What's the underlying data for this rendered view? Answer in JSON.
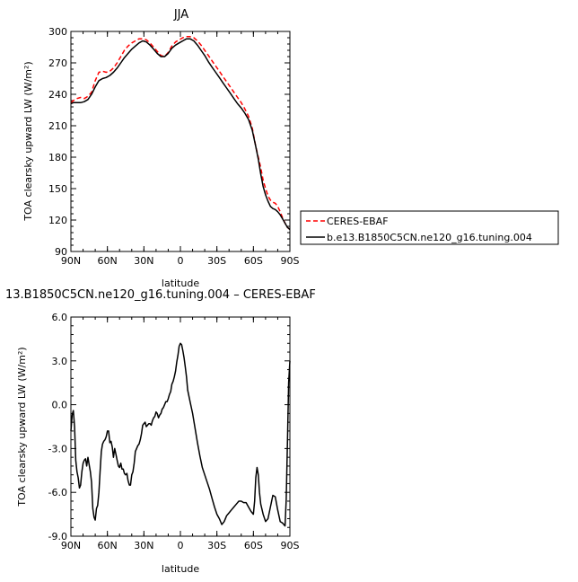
{
  "chart_data": [
    {
      "type": "line",
      "title": "JJA",
      "xlabel": "latitude",
      "ylabel": "TOA clearsky upward LW (W/m²)",
      "xlim": [
        90,
        -90
      ],
      "ylim": [
        90,
        300
      ],
      "x_ticks": [
        {
          "value": 90,
          "label": "90N"
        },
        {
          "value": 60,
          "label": "60N"
        },
        {
          "value": 30,
          "label": "30N"
        },
        {
          "value": 0,
          "label": "0"
        },
        {
          "value": -30,
          "label": "30S"
        },
        {
          "value": -60,
          "label": "60S"
        },
        {
          "value": -90,
          "label": "90S"
        }
      ],
      "y_ticks": [
        {
          "value": 90,
          "label": "90"
        },
        {
          "value": 120,
          "label": "120"
        },
        {
          "value": 150,
          "label": "150"
        },
        {
          "value": 180,
          "label": "180"
        },
        {
          "value": 210,
          "label": "210"
        },
        {
          "value": 240,
          "label": "240"
        },
        {
          "value": 270,
          "label": "270"
        },
        {
          "value": 300,
          "label": "300"
        }
      ],
      "legend_position": "right",
      "series": [
        {
          "name": "CERES-EBAF",
          "color": "#ff0000",
          "dash": "dashed",
          "x": [
            90,
            88,
            85,
            82,
            79,
            76,
            73,
            70,
            67,
            64,
            61,
            58,
            55,
            52,
            49,
            46,
            43,
            40,
            37,
            34,
            31,
            28,
            25,
            22,
            19,
            16,
            13,
            10,
            7,
            4,
            1,
            -2,
            -5,
            -8,
            -11,
            -14,
            -17,
            -20,
            -23,
            -26,
            -29,
            -32,
            -35,
            -38,
            -41,
            -44,
            -47,
            -50,
            -53,
            -56,
            -59,
            -62,
            -64,
            -66,
            -68,
            -70,
            -72,
            -74,
            -76,
            -78,
            -80,
            -82,
            -84,
            -86,
            -88,
            -90
          ],
          "y": [
            232,
            234,
            236,
            237,
            236,
            238,
            242,
            253,
            261,
            262,
            261,
            262,
            265,
            270,
            276,
            282,
            286,
            289,
            291,
            293,
            293,
            292,
            289,
            285,
            281,
            277,
            276,
            280,
            286,
            290,
            292,
            294,
            295,
            295,
            294,
            291,
            287,
            282,
            277,
            272,
            267,
            262,
            257,
            252,
            247,
            242,
            237,
            232,
            226,
            219,
            208,
            190,
            180,
            170,
            158,
            150,
            143,
            139,
            137,
            136,
            133,
            128,
            122,
            117,
            113,
            111
          ]
        },
        {
          "name": "b.e13.B1850C5CN.ne120_g16.tuning.004",
          "color": "#000000",
          "dash": "solid",
          "x": [
            90,
            88,
            85,
            82,
            79,
            76,
            73,
            70,
            67,
            64,
            61,
            58,
            55,
            52,
            49,
            46,
            43,
            40,
            37,
            34,
            31,
            28,
            25,
            22,
            19,
            16,
            13,
            10,
            7,
            4,
            1,
            -2,
            -5,
            -8,
            -11,
            -14,
            -17,
            -20,
            -23,
            -26,
            -29,
            -32,
            -35,
            -38,
            -41,
            -44,
            -47,
            -50,
            -53,
            -56,
            -59,
            -62,
            -64,
            -66,
            -68,
            -70,
            -72,
            -74,
            -76,
            -78,
            -80,
            -82,
            -84,
            -86,
            -88,
            -90
          ],
          "y": [
            231,
            232,
            232,
            232,
            233,
            235,
            240,
            247,
            253,
            255,
            256,
            258,
            261,
            265,
            270,
            275,
            279,
            283,
            286,
            289,
            291,
            290,
            287,
            283,
            279,
            276,
            276,
            279,
            284,
            287,
            289,
            291,
            293,
            293,
            291,
            287,
            282,
            277,
            271,
            266,
            261,
            256,
            251,
            246,
            241,
            236,
            231,
            227,
            222,
            216,
            206,
            190,
            178,
            164,
            152,
            144,
            138,
            133,
            131,
            130,
            128,
            125,
            121,
            117,
            113,
            111
          ]
        }
      ]
    },
    {
      "type": "line",
      "title": "13.B1850C5CN.ne120_g16.tuning.004 – CERES-EBAF",
      "xlabel": "latitude",
      "ylabel": "TOA clearsky upward LW (W/m²)",
      "xlim": [
        90,
        -90
      ],
      "ylim": [
        -9,
        6
      ],
      "x_ticks": [
        {
          "value": 90,
          "label": "90N"
        },
        {
          "value": 60,
          "label": "60N"
        },
        {
          "value": 30,
          "label": "30N"
        },
        {
          "value": 0,
          "label": "0"
        },
        {
          "value": -30,
          "label": "30S"
        },
        {
          "value": -60,
          "label": "60S"
        },
        {
          "value": -90,
          "label": "90S"
        }
      ],
      "y_ticks": [
        {
          "value": -9,
          "label": "-9.0"
        },
        {
          "value": -6,
          "label": "-6.0"
        },
        {
          "value": -3,
          "label": "-3.0"
        },
        {
          "value": 0,
          "label": "0.0"
        },
        {
          "value": 3,
          "label": "3.0"
        },
        {
          "value": 6,
          "label": "6.0"
        }
      ],
      "series": [
        {
          "color": "#000000",
          "dash": "solid",
          "x": [
            90,
            89,
            88,
            87,
            86,
            85,
            84,
            83,
            82,
            81,
            80,
            79,
            78,
            77,
            76,
            75,
            74,
            73,
            72,
            71,
            70,
            69,
            68,
            67,
            66,
            65,
            64,
            63,
            62,
            61,
            60,
            59,
            58,
            57,
            56,
            55,
            54,
            53,
            52,
            51,
            50,
            49,
            48,
            47,
            46,
            45,
            44,
            43,
            42,
            41,
            40,
            39,
            38,
            37,
            36,
            35,
            34,
            33,
            32,
            31,
            30,
            29,
            28,
            27,
            26,
            25,
            24,
            23,
            22,
            21,
            20,
            19,
            18,
            17,
            16,
            15,
            14,
            13,
            12,
            11,
            10,
            9,
            8,
            7,
            6,
            5,
            4,
            3,
            2,
            1,
            0,
            -1,
            -2,
            -3,
            -4,
            -5,
            -6,
            -8,
            -10,
            -12,
            -14,
            -16,
            -18,
            -20,
            -22,
            -24,
            -26,
            -28,
            -30,
            -32,
            -34,
            -36,
            -38,
            -40,
            -42,
            -44,
            -46,
            -48,
            -50,
            -52,
            -54,
            -56,
            -58,
            -60,
            -61,
            -62,
            -63,
            -64,
            -65,
            -66,
            -68,
            -70,
            -72,
            -74,
            -76,
            -78,
            -80,
            -82,
            -84,
            -85,
            -86,
            -87,
            -88,
            -89,
            -90
          ],
          "y": [
            -1.8,
            -0.7,
            -0.4,
            -1.5,
            -3.8,
            -4.6,
            -5.0,
            -5.7,
            -5.5,
            -4.6,
            -4.0,
            -3.8,
            -3.7,
            -4.2,
            -3.6,
            -4.1,
            -4.6,
            -5.3,
            -7.1,
            -7.7,
            -7.9,
            -7.1,
            -6.9,
            -6.0,
            -4.6,
            -3.2,
            -2.7,
            -2.5,
            -2.4,
            -2.2,
            -1.8,
            -1.8,
            -2.6,
            -2.5,
            -2.9,
            -3.6,
            -3.0,
            -3.4,
            -3.8,
            -4.2,
            -4.3,
            -4.0,
            -4.4,
            -4.4,
            -4.7,
            -4.8,
            -4.7,
            -5.2,
            -5.5,
            -5.5,
            -4.8,
            -4.6,
            -4.0,
            -3.2,
            -3.0,
            -2.8,
            -2.7,
            -2.4,
            -2.0,
            -1.4,
            -1.3,
            -1.2,
            -1.5,
            -1.4,
            -1.3,
            -1.3,
            -1.4,
            -1.1,
            -0.9,
            -0.8,
            -0.5,
            -0.6,
            -0.9,
            -0.7,
            -0.6,
            -0.3,
            -0.2,
            0.0,
            0.2,
            0.2,
            0.4,
            0.7,
            0.9,
            1.4,
            1.6,
            1.9,
            2.3,
            2.9,
            3.4,
            4.0,
            4.2,
            4.1,
            3.7,
            3.2,
            2.6,
            1.9,
            1.0,
            0.2,
            -0.6,
            -1.6,
            -2.6,
            -3.5,
            -4.3,
            -4.8,
            -5.3,
            -5.8,
            -6.4,
            -7.0,
            -7.5,
            -7.8,
            -8.2,
            -8.0,
            -7.6,
            -7.4,
            -7.2,
            -7.0,
            -6.8,
            -6.6,
            -6.6,
            -6.7,
            -6.7,
            -7.0,
            -7.3,
            -7.5,
            -6.6,
            -5.0,
            -4.3,
            -4.8,
            -6.0,
            -6.8,
            -7.5,
            -8.0,
            -7.8,
            -7.0,
            -6.2,
            -6.3,
            -7.2,
            -8.0,
            -8.1,
            -8.2,
            -8.3,
            -6.5,
            -2.5,
            1.5,
            3.0
          ]
        }
      ]
    }
  ],
  "legend": {
    "entries": [
      {
        "label": "CERES-EBAF",
        "color": "#ff0000",
        "dash": "dashed"
      },
      {
        "label": "b.e13.B1850C5CN.ne120_g16.tuning.004",
        "color": "#000000",
        "dash": "solid"
      }
    ]
  }
}
